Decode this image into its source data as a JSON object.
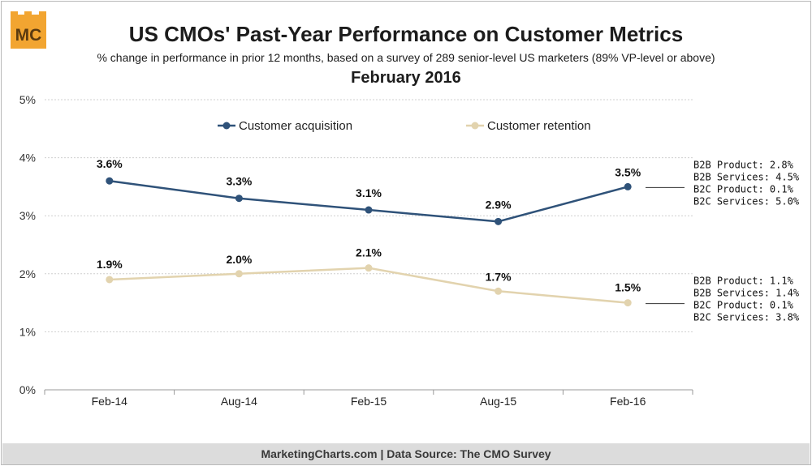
{
  "logo": {
    "text": "MC",
    "icon": "marketingcharts-logo-icon"
  },
  "title": "US CMOs' Past-Year Performance on Customer Metrics",
  "subtitle": "% change in performance in prior 12 months, based on a survey of 289 senior-level US marketers (89% VP-level or above)",
  "date_label": "February 2016",
  "footer": "MarketingCharts.com | Data Source: The CMO Survey",
  "colors": {
    "acquisition": "#2f5279",
    "retention": "#e2d3ae",
    "grid": "#cfcfcf",
    "axis": "#999999"
  },
  "chart_data": {
    "type": "line",
    "categories": [
      "Feb-14",
      "Aug-14",
      "Feb-15",
      "Aug-15",
      "Feb-16"
    ],
    "ylim": [
      0,
      5
    ],
    "yticks": [
      "0%",
      "1%",
      "2%",
      "3%",
      "4%",
      "5%"
    ],
    "grid": true,
    "legend_position": "top",
    "series": [
      {
        "name": "Customer acquisition",
        "values": [
          3.6,
          3.3,
          3.1,
          2.9,
          3.5
        ],
        "labels": [
          "3.6%",
          "3.3%",
          "3.1%",
          "2.9%",
          "3.5%"
        ]
      },
      {
        "name": "Customer retention",
        "values": [
          1.9,
          2.0,
          2.1,
          1.7,
          1.5
        ],
        "labels": [
          "1.9%",
          "2.0%",
          "2.1%",
          "1.7%",
          "1.5%"
        ]
      }
    ],
    "annotations": [
      {
        "series": "Customer acquisition",
        "lines": [
          "B2B Product: 2.8%",
          "B2B Services: 4.5%",
          "B2C Product: 0.1%",
          "B2C Services: 5.0%"
        ]
      },
      {
        "series": "Customer retention",
        "lines": [
          "B2B Product: 1.1%",
          "B2B Services: 1.4%",
          "B2C Product: 0.1%",
          "B2C Services: 3.8%"
        ]
      }
    ]
  }
}
